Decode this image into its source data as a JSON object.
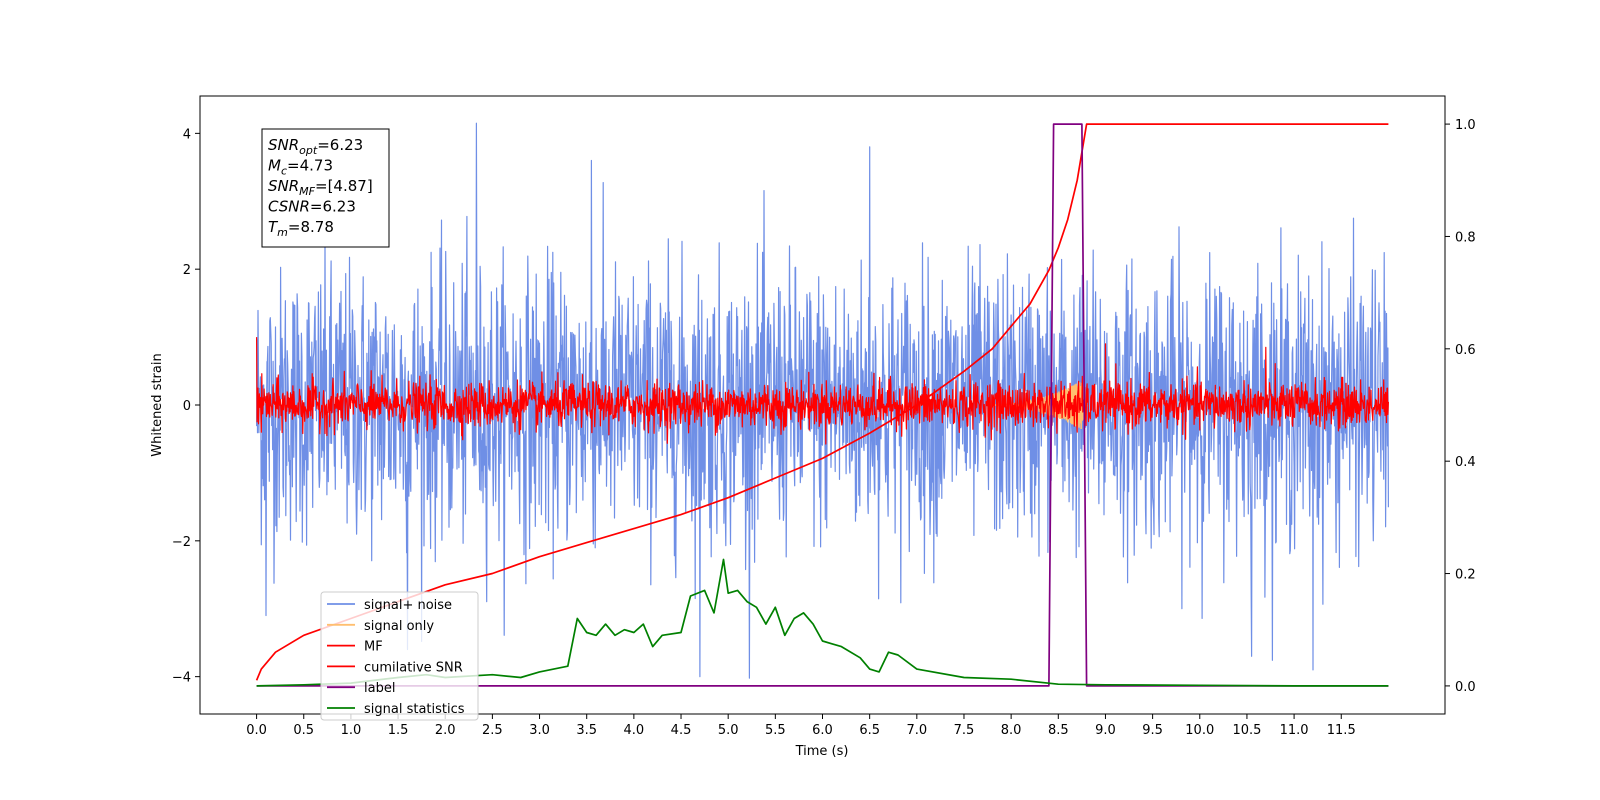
{
  "chart_data": {
    "type": "line",
    "xlabel": "Time (s)",
    "ylabel": "Whitened strain",
    "xlim": [
      -0.6,
      12.6
    ],
    "ylim": [
      -4.55,
      4.55
    ],
    "y2lim": [
      -0.05,
      1.05
    ],
    "x_ticks": [
      "0.0",
      "0.5",
      "1.0",
      "1.5",
      "2.0",
      "2.5",
      "3.0",
      "3.5",
      "4.0",
      "4.5",
      "5.0",
      "5.5",
      "6.0",
      "6.5",
      "7.0",
      "7.5",
      "8.0",
      "8.5",
      "9.0",
      "9.5",
      "10.0",
      "10.5",
      "11.0",
      "11.5"
    ],
    "y_ticks": [
      "−4",
      "−2",
      "0",
      "2",
      "4"
    ],
    "y2_ticks": [
      "0.0",
      "0.2",
      "0.4",
      "0.6",
      "0.8",
      "1.0"
    ],
    "legend_position": "lower-left",
    "annotation": [
      {
        "base": "SNR",
        "sub": "opt",
        "value": "=6.23"
      },
      {
        "base": "M",
        "sub": "c",
        "value": "=4.73"
      },
      {
        "base": "SNR",
        "sub": "MF",
        "value": "=[4.87]"
      },
      {
        "base": "CSNR",
        "sub": "",
        "value": "=6.23"
      },
      {
        "base": "T",
        "sub": "m",
        "value": "=8.78"
      }
    ],
    "series": [
      {
        "name": "signal+ noise",
        "color": "#6f8fe6",
        "axis": "left",
        "kind": "noise",
        "x_range": [
          0,
          12
        ],
        "std": 1.0,
        "extremes": [
          [
            2.33,
            4.15
          ],
          [
            0.1,
            -3.1
          ],
          [
            4.7,
            -4.0
          ],
          [
            11.2,
            -3.9
          ],
          [
            6.5,
            3.8
          ],
          [
            10.55,
            -3.7
          ],
          [
            3.55,
            3.6
          ],
          [
            1.6,
            -3.6
          ]
        ]
      },
      {
        "name": "signal only",
        "color": "#ffbf70",
        "axis": "left",
        "kind": "chirp",
        "x_range": [
          7.8,
          8.8
        ],
        "peak": 0.4
      },
      {
        "name": "MF",
        "color": "#ff0000",
        "axis": "left",
        "kind": "noise",
        "x_range": [
          0,
          12
        ],
        "std": 0.17,
        "extremes": [
          [
            0.0,
            1.0
          ],
          [
            9.0,
            0.9
          ],
          [
            10.7,
            0.85
          ],
          [
            8.7,
            -0.4
          ],
          [
            0.05,
            -0.4
          ]
        ]
      },
      {
        "name": "cumilative SNR",
        "color": "#ff0000",
        "axis": "right",
        "x": [
          0.0,
          0.05,
          0.2,
          0.5,
          1.0,
          1.5,
          2.0,
          2.5,
          3.0,
          3.5,
          4.0,
          4.5,
          5.0,
          5.5,
          6.0,
          6.5,
          7.0,
          7.5,
          7.8,
          8.0,
          8.2,
          8.4,
          8.5,
          8.6,
          8.7,
          8.75,
          8.8,
          9.0,
          10.0,
          11.0,
          12.0
        ],
        "y": [
          0.01,
          0.03,
          0.06,
          0.09,
          0.12,
          0.15,
          0.18,
          0.2,
          0.23,
          0.255,
          0.28,
          0.305,
          0.335,
          0.37,
          0.405,
          0.45,
          0.5,
          0.56,
          0.6,
          0.64,
          0.68,
          0.74,
          0.78,
          0.83,
          0.9,
          0.95,
          1.0,
          1.0,
          1.0,
          1.0,
          1.0
        ]
      },
      {
        "name": "label",
        "color": "#800080",
        "axis": "right",
        "x": [
          0.0,
          8.4,
          8.45,
          8.75,
          8.8,
          12.0
        ],
        "y": [
          0.0,
          0.0,
          1.0,
          1.0,
          0.0,
          0.0
        ]
      },
      {
        "name": "signal statistics",
        "color": "#008000",
        "axis": "right",
        "x": [
          0.0,
          0.5,
          1.0,
          1.5,
          1.8,
          2.0,
          2.5,
          2.8,
          3.0,
          3.3,
          3.4,
          3.5,
          3.6,
          3.7,
          3.8,
          3.9,
          4.0,
          4.1,
          4.2,
          4.3,
          4.5,
          4.6,
          4.75,
          4.85,
          4.95,
          5.0,
          5.1,
          5.2,
          5.3,
          5.4,
          5.5,
          5.6,
          5.7,
          5.8,
          5.9,
          6.0,
          6.1,
          6.2,
          6.4,
          6.5,
          6.6,
          6.7,
          6.8,
          7.0,
          7.5,
          8.0,
          8.5,
          9.0,
          10.0,
          11.0,
          12.0
        ],
        "y": [
          0.0,
          0.002,
          0.005,
          0.015,
          0.02,
          0.015,
          0.02,
          0.015,
          0.025,
          0.035,
          0.12,
          0.095,
          0.09,
          0.11,
          0.09,
          0.1,
          0.095,
          0.11,
          0.07,
          0.09,
          0.095,
          0.16,
          0.17,
          0.13,
          0.225,
          0.165,
          0.17,
          0.15,
          0.14,
          0.11,
          0.14,
          0.09,
          0.12,
          0.13,
          0.11,
          0.08,
          0.075,
          0.07,
          0.05,
          0.03,
          0.025,
          0.06,
          0.055,
          0.03,
          0.015,
          0.012,
          0.003,
          0.002,
          0.001,
          0.0,
          0.0
        ]
      }
    ]
  }
}
